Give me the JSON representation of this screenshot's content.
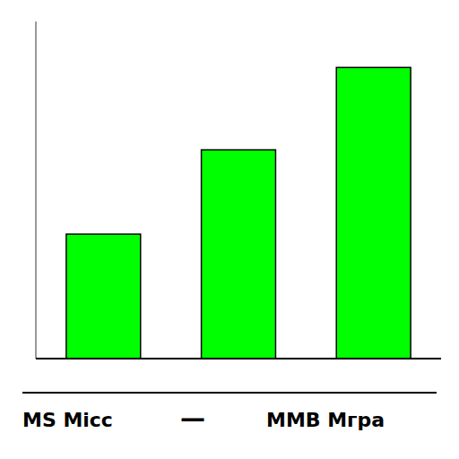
{
  "chart_data": {
    "type": "bar",
    "categories": [
      null,
      null,
      null
    ],
    "values": [
      0.325,
      0.545,
      0.76
    ],
    "color": "#00FF00",
    "ylim": [
      0.0,
      0.88
    ],
    "yticks": [],
    "tick_labels": false,
    "annotations": [
      "MS Micc",
      "—",
      "MMB Мгра"
    ]
  }
}
